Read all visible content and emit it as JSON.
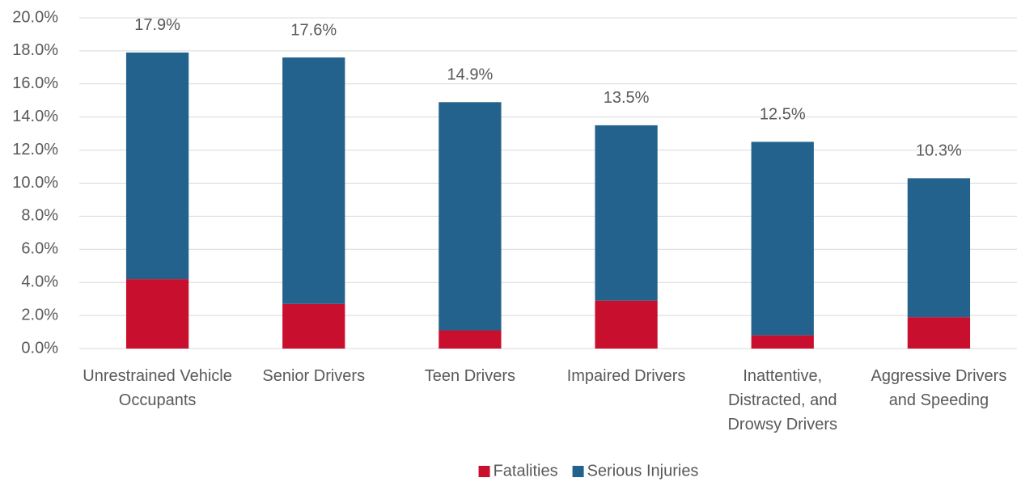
{
  "chart_data": {
    "type": "stacked_bar",
    "categories": [
      "Unrestrained Vehicle Occupants",
      "Senior Drivers",
      "Teen Drivers",
      "Impaired Drivers",
      "Inattentive, Distracted, and Drowsy Drivers",
      "Aggressive Drivers and Speeding"
    ],
    "series": [
      {
        "name": "Fatalities",
        "color": "#c8102e",
        "values": [
          4.2,
          2.7,
          1.1,
          2.9,
          0.8,
          1.9
        ]
      },
      {
        "name": "Serious Injuries",
        "color": "#22628c",
        "values": [
          13.7,
          14.9,
          13.8,
          10.6,
          11.7,
          8.4
        ]
      }
    ],
    "totals": [
      17.9,
      17.6,
      14.9,
      13.5,
      12.5,
      10.3
    ],
    "total_labels": [
      "17.9%",
      "17.6%",
      "14.9%",
      "13.5%",
      "12.5%",
      "10.3%"
    ],
    "ylim": [
      0,
      20
    ],
    "yticks": [
      {
        "value": 0,
        "label": "0.0%"
      },
      {
        "value": 2,
        "label": "2.0%"
      },
      {
        "value": 4,
        "label": "4.0%"
      },
      {
        "value": 6,
        "label": "6.0%"
      },
      {
        "value": 8,
        "label": "8.0%"
      },
      {
        "value": 10,
        "label": "10.0%"
      },
      {
        "value": 12,
        "label": "12.0%"
      },
      {
        "value": 14,
        "label": "14.0%"
      },
      {
        "value": 16,
        "label": "16.0%"
      },
      {
        "value": 18,
        "label": "18.0%"
      },
      {
        "value": 20,
        "label": "20.0%"
      }
    ],
    "grid": true,
    "legend": "bottom"
  }
}
